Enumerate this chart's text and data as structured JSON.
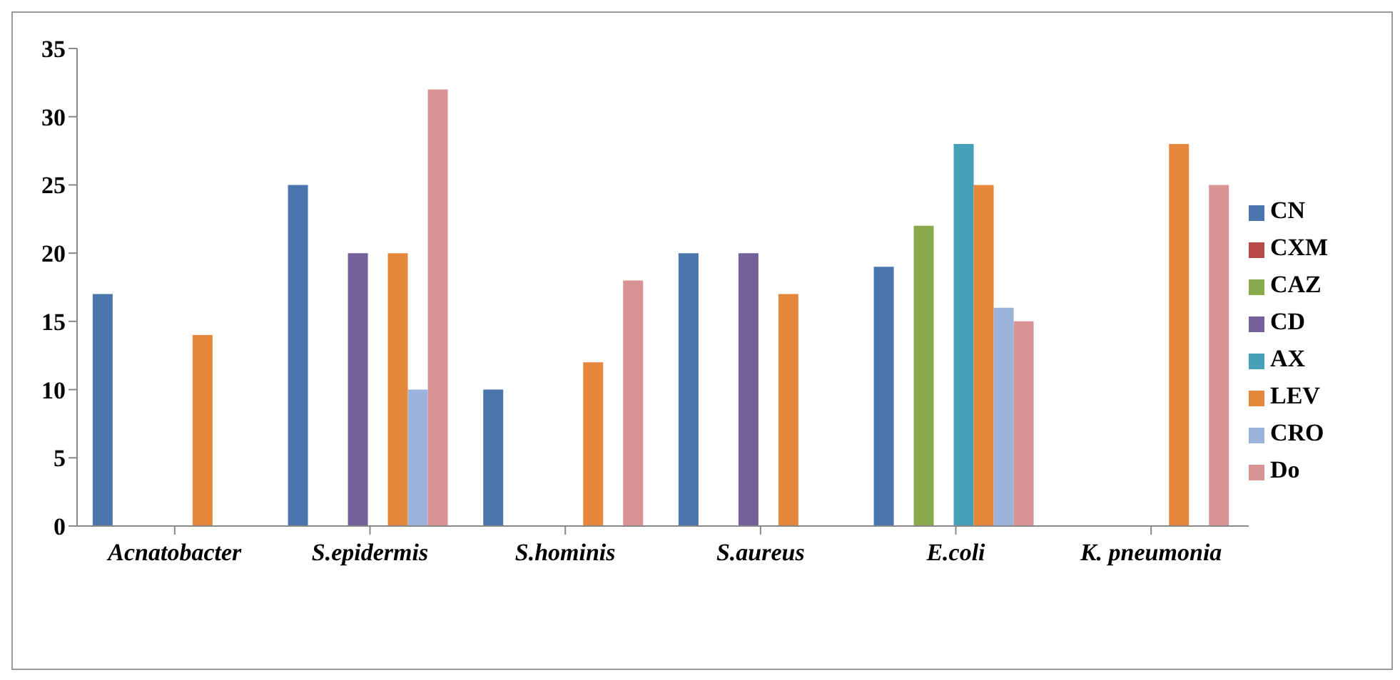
{
  "chart_data": {
    "type": "bar",
    "categories": [
      "Acnatobacter",
      "S.epidermis",
      "S.hominis",
      "S.aureus",
      "E.coli",
      "K. pneumonia"
    ],
    "series": [
      {
        "name": "CN",
        "color": "#4a76ad",
        "values": [
          17,
          25,
          10,
          20,
          19,
          null
        ]
      },
      {
        "name": "CXM",
        "color": "#b84a47",
        "values": [
          null,
          null,
          null,
          null,
          null,
          null
        ]
      },
      {
        "name": "CAZ",
        "color": "#8aaa4e",
        "values": [
          null,
          null,
          null,
          null,
          22,
          null
        ]
      },
      {
        "name": "CD",
        "color": "#74609a",
        "values": [
          null,
          20,
          null,
          20,
          null,
          null
        ]
      },
      {
        "name": "AX",
        "color": "#45a0b8",
        "values": [
          null,
          null,
          null,
          null,
          28,
          null
        ]
      },
      {
        "name": "LEV",
        "color": "#e6883c",
        "values": [
          14,
          20,
          12,
          17,
          25,
          28
        ]
      },
      {
        "name": "CRO",
        "color": "#9bb3da",
        "values": [
          null,
          10,
          null,
          null,
          16,
          null
        ]
      },
      {
        "name": "Do",
        "color": "#d89494",
        "values": [
          null,
          32,
          18,
          null,
          15,
          25
        ]
      }
    ],
    "ylim": [
      0,
      35
    ],
    "yticks": [
      0,
      5,
      10,
      15,
      20,
      25,
      30,
      35
    ],
    "grid": false,
    "legend": "right"
  }
}
